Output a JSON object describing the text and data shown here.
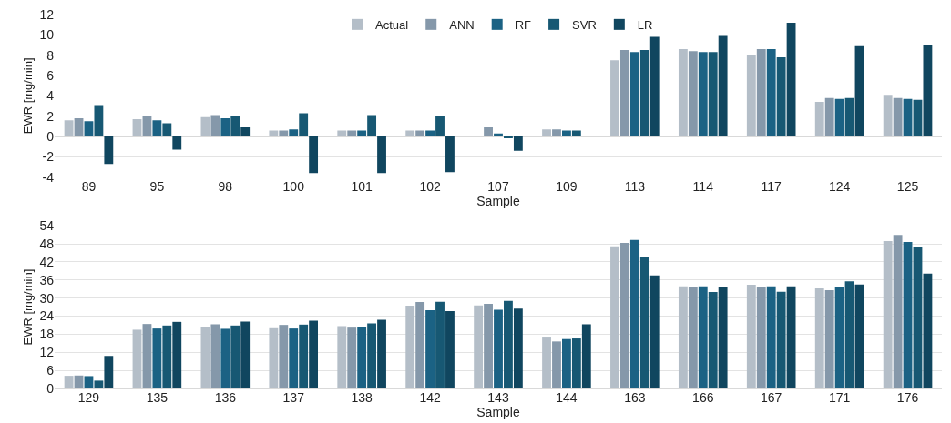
{
  "chart_data": [
    {
      "type": "bar",
      "xlabel": "Sample",
      "ylabel": "EWR [mg/min]",
      "categories": [
        "89",
        "95",
        "98",
        "100",
        "101",
        "102",
        "107",
        "109",
        "113",
        "114",
        "117",
        "124",
        "125"
      ],
      "series": [
        {
          "name": "Actual",
          "color": "#b4bec8",
          "values": [
            1.6,
            1.7,
            1.9,
            0.6,
            0.6,
            0.6,
            0.0,
            0.7,
            7.5,
            8.6,
            8.0,
            3.4,
            4.1
          ]
        },
        {
          "name": "ANN",
          "color": "#8598aa",
          "values": [
            1.8,
            2.0,
            2.1,
            0.6,
            0.6,
            0.6,
            0.9,
            0.7,
            8.5,
            8.4,
            8.6,
            3.8,
            3.8
          ]
        },
        {
          "name": "RF",
          "color": "#1b6284",
          "values": [
            1.5,
            1.6,
            1.8,
            0.7,
            0.6,
            0.6,
            0.3,
            0.6,
            8.3,
            8.3,
            8.6,
            3.7,
            3.7
          ]
        },
        {
          "name": "SVR",
          "color": "#175873",
          "values": [
            3.1,
            1.3,
            2.0,
            2.3,
            2.1,
            2.0,
            -0.1,
            0.6,
            8.5,
            8.3,
            7.8,
            3.8,
            3.6
          ]
        },
        {
          "name": "LR",
          "color": "#10465f",
          "values": [
            -2.7,
            -1.3,
            0.9,
            -3.6,
            -3.6,
            -3.5,
            -1.4,
            0.0,
            9.8,
            9.9,
            11.2,
            8.9,
            9.0
          ]
        }
      ],
      "ylim": [
        -4,
        12
      ],
      "yticks": [
        -4,
        -2,
        0,
        2,
        4,
        6,
        8,
        10,
        12
      ],
      "grid": "y",
      "legend": "top"
    },
    {
      "type": "bar",
      "xlabel": "Sample",
      "ylabel": "EWR [mg/min]",
      "categories": [
        "129",
        "135",
        "136",
        "137",
        "138",
        "142",
        "143",
        "144",
        "163",
        "166",
        "167",
        "171",
        "176"
      ],
      "series": [
        {
          "color": "#b4bec8",
          "values": [
            4.2,
            19.5,
            20.5,
            20.0,
            20.7,
            27.5,
            27.6,
            16.9,
            47.2,
            33.9,
            34.4,
            33.2,
            48.9
          ]
        },
        {
          "color": "#8598aa",
          "values": [
            4.3,
            21.4,
            21.3,
            21.1,
            20.2,
            28.7,
            28.1,
            15.6,
            48.3,
            33.7,
            33.8,
            32.6,
            51.0
          ]
        },
        {
          "color": "#1b6284",
          "values": [
            4.1,
            19.9,
            19.8,
            19.9,
            20.4,
            26.0,
            26.1,
            16.4,
            49.3,
            33.9,
            33.9,
            33.5,
            48.6
          ]
        },
        {
          "color": "#175873",
          "values": [
            2.6,
            20.9,
            20.9,
            21.2,
            21.6,
            28.8,
            29.1,
            16.6,
            43.7,
            32.0,
            32.1,
            35.6,
            46.8
          ]
        },
        {
          "color": "#10465f",
          "values": [
            10.8,
            22.1,
            22.2,
            22.5,
            22.8,
            25.7,
            26.5,
            21.3,
            37.5,
            33.8,
            33.9,
            34.5,
            38.1
          ]
        }
      ],
      "ylim": [
        0,
        54
      ],
      "yticks": [
        0,
        6,
        12,
        18,
        24,
        30,
        36,
        42,
        48,
        54
      ],
      "grid": "y"
    }
  ]
}
